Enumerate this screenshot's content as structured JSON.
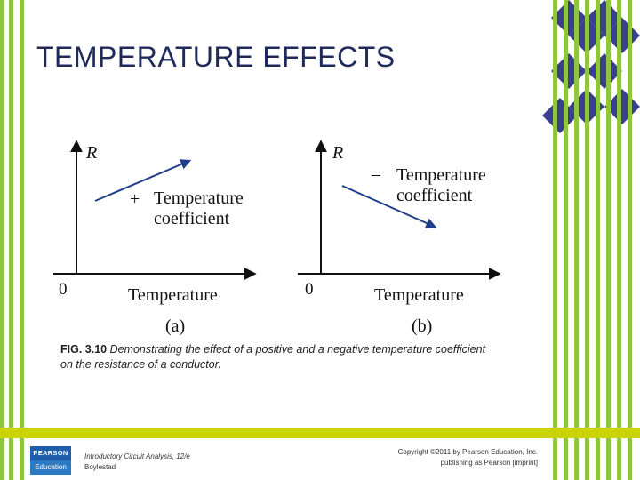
{
  "title": "TEMPERATURE EFFECTS",
  "figure": {
    "panel_a": {
      "axis_y": "R",
      "axis_x": "Temperature",
      "origin": "0",
      "sign": "+",
      "line1": "Temperature",
      "line2": "coefficient",
      "panel_label": "(a)"
    },
    "panel_b": {
      "axis_y": "R",
      "axis_x": "Temperature",
      "origin": "0",
      "sign": "–",
      "line1": "Temperature",
      "line2": "coefficient",
      "panel_label": "(b)"
    }
  },
  "caption": {
    "label": "FIG. 3.10",
    "text": "Demonstrating the effect of a positive and a negative temperature coefficient on the resistance of a conductor."
  },
  "footer": {
    "logo_top": "PEARSON",
    "logo_bottom": "Education",
    "book_title": "Introductory Circuit Analysis, 12/e",
    "book_author": "Boylestad",
    "copyright_line1": "Copyright ©2011 by Pearson Education, Inc.",
    "copyright_line2": "publishing as Pearson [imprint]"
  },
  "colors": {
    "stripe_green": "#8dc63f",
    "diamond_navy": "#3a3f8f",
    "footer_bar": "#c9d400",
    "arrow_blue": "#1f3f8c",
    "title_navy": "#1f2a5a"
  }
}
